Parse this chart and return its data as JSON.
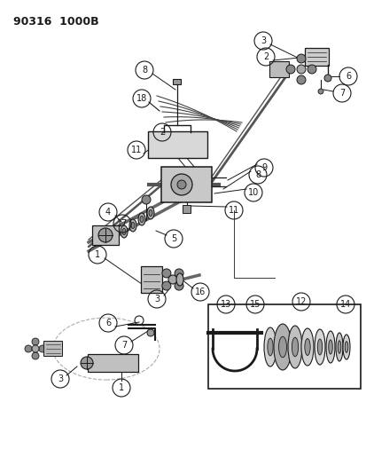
{
  "title": "90316  1000B",
  "bg_color": "#ffffff",
  "lc": "#1a1a1a",
  "fig_w": 4.14,
  "fig_h": 5.33,
  "dpi": 100
}
